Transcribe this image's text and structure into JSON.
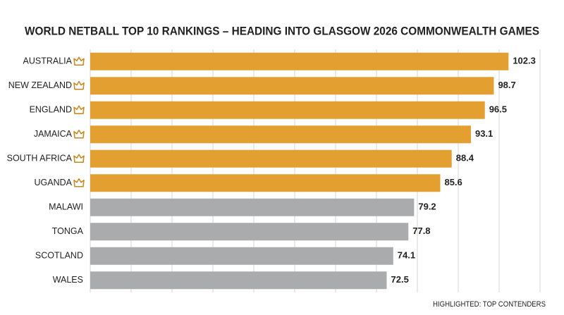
{
  "chart_data": {
    "type": "hbar",
    "title": "WORLD NETBALL TOP 10 RANKINGS – HEADING INTO GLASGOW 2026 COMMONWEALTH GAMES",
    "categories": [
      "AUSTRALIA",
      "NEW ZEALAND",
      "ENGLAND",
      "JAMAICA",
      "SOUTH AFRICA",
      "UGANDA",
      "MALAWI",
      "TONGA",
      "SCOTLAND",
      "WALES"
    ],
    "values": [
      102.3,
      98.7,
      96.5,
      93.1,
      88.4,
      85.6,
      79.2,
      77.8,
      74.1,
      72.5
    ],
    "highlighted": [
      true,
      true,
      true,
      true,
      true,
      true,
      false,
      false,
      false,
      false
    ],
    "highlight_color": "#e3a030",
    "color": "#a9abad",
    "xlim": [
      0,
      110
    ],
    "xticks": [
      0,
      10,
      20,
      30,
      40,
      50,
      60,
      70,
      80,
      90,
      100,
      110
    ],
    "grid": true,
    "note": "HIGHLIGHTED: TOP CONTENDERS"
  }
}
